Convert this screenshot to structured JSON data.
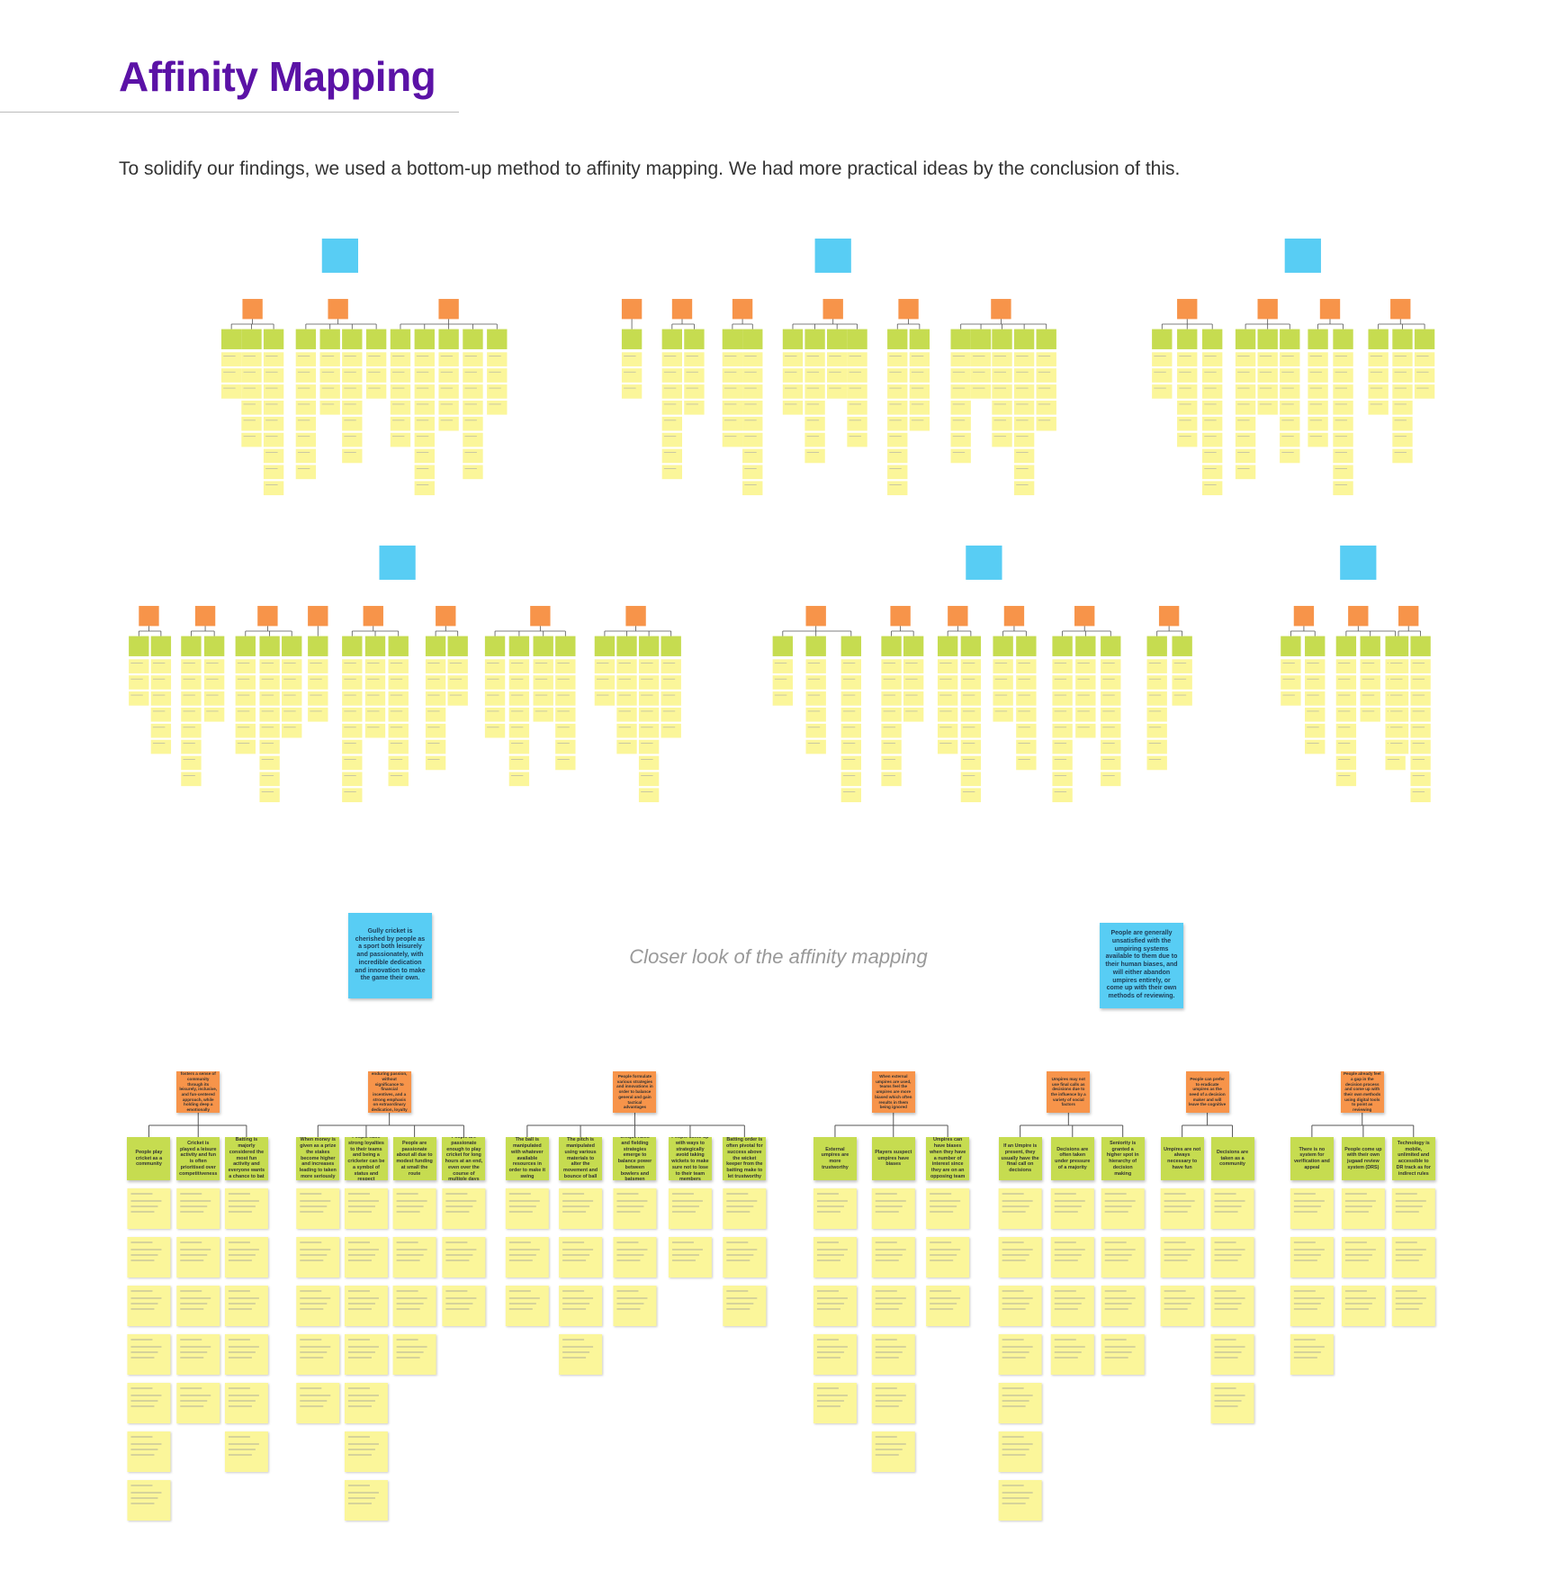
{
  "header": {
    "title": "Affinity Mapping",
    "description": "To solidify our findings, we used a bottom-up method to affinity mapping. We had more practical ideas by the conclusion of this."
  },
  "closer_look": {
    "caption": "Closer look of the affinity mapping",
    "themes": [
      {
        "insight": "Gully cricket is cherished by people as a sport both leisurely and passionately, with incredible dedication and innovation to make the game their own.",
        "groups": [
          {
            "label": "Gully cricket fosters a sense of community through its leisurely, inclusive, and fun-centered approach, while holding deep a emotionally cherished aspect",
            "notes": [
              "People play cricket as a community",
              "Cricket is played a leisure activity and fun is often prioritised over competitiveness",
              "Batting is majorly considered the most fun activity and everyone wants a chance to bat"
            ]
          },
          {
            "label": "A multitude of enduring passion, without significance to financial incentives, and a strong emphasis on extraordinary dedication, loyalty or hard work",
            "notes": [
              "When money is given as a prize the stakes become higher and increases leading to taken more seriously",
              "People have strong loyalties to their teams and being a cricketer can be a symbol of status and respect",
              "People are passionate about all due to modest funding at small the route",
              "People are passionate enough to play cricket for long hours at an end, even over the course of multiple days"
            ]
          },
          {
            "label": "People formulate various strategies and innovations in order to balance general and gain tactical advantages",
            "notes": [
              "The ball is manipulated with whatever available resources in order to make it swing",
              "The pitch is manipulated using various materials to alter the movement and bounce of ball",
              "Unique rules and fielding strategies emerge to balance power between bowlers and batsmen",
              "People come up with ways to strategically avoid taking wickets to make sure not to lose to their team members",
              "Batting order is often pivotal for success above the wicket keeper from the batting make to let trustworthy"
            ]
          }
        ]
      },
      {
        "insight": "People are generally unsatisfied with the umpiring systems available to them due to their human biases, and will either abandon umpires entirely, or come up with their own methods of reviewing.",
        "groups": [
          {
            "label": "When external umpires are used, teams feel the umpires are more biased which often results in them being ignored",
            "notes": [
              "External umpires are more trustworthy",
              "Players suspect umpires have biases",
              "Umpires can have biases when they have a number of interest since they are on an opposing team"
            ]
          },
          {
            "label": "Umpires may not use final calls as decisions due to the influence by a variety of social factors",
            "notes": [
              "If an Umpire is present, they usually have the final call on decisions",
              "Decisions are often taken under pressure of a majority",
              "Seniority is granted a higher spot in hierarchy of decision making"
            ]
          },
          {
            "label": "People can prefer to eradicate umpires as the need of a decision maker and will leave the cognitive",
            "notes": [
              "Umpires are not always necessary to have fun",
              "Decisions are taken as a community"
            ]
          },
          {
            "label": "People already feel a gap in the decision process and come up with their own methods using digital tools to point as reviewing",
            "notes": [
              "There is no system for verification and appeal",
              "People come up with their own jugaad review system (DRS)",
              "Technology is mobile, unlimited and accessible to DR track as for indirect rules"
            ]
          }
        ]
      }
    ]
  }
}
